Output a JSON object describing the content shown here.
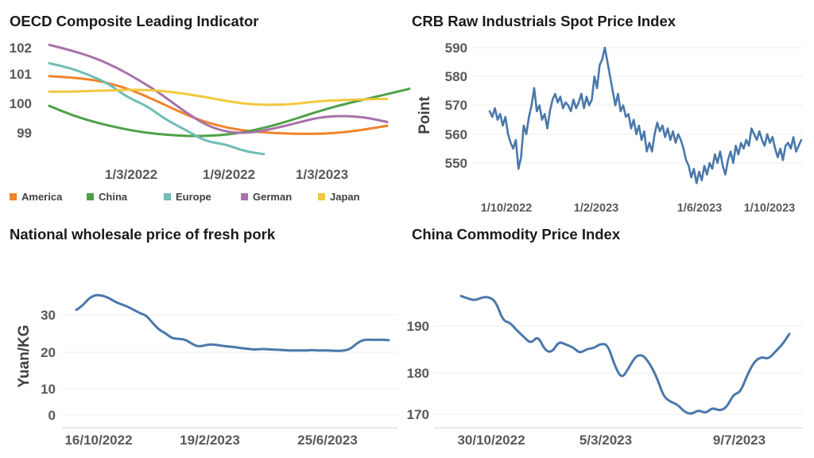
{
  "chart_data": [
    {
      "id": "oecd",
      "type": "line",
      "title": "OECD Composite Leading Indicator",
      "x_ticks": [
        "1/3/2022",
        "1/9/2022",
        "1/3/2023"
      ],
      "y_ticks": [
        "99",
        "100",
        "101",
        "102"
      ],
      "ylim": [
        98,
        102.2
      ],
      "legend_position": "bottom",
      "series": [
        {
          "name": "America",
          "color": "#F0832A",
          "values": [
            101.0,
            100.95,
            100.88,
            100.72,
            100.48,
            100.15,
            99.8,
            99.48,
            99.25,
            99.1,
            99.02,
            98.98,
            98.96,
            98.97,
            99.02,
            99.12,
            99.25
          ]
        },
        {
          "name": "China",
          "color": "#4EA046",
          "values": [
            99.95,
            99.6,
            99.35,
            99.15,
            99.0,
            98.92,
            98.88,
            98.9,
            99.0,
            99.18,
            99.42,
            99.7,
            99.95,
            100.15,
            100.35,
            100.55
          ]
        },
        {
          "name": "Europe",
          "color": "#6FBDB5",
          "values": [
            101.45,
            101.3,
            101.05,
            100.75,
            100.25,
            99.95,
            99.45,
            99.1,
            98.7,
            98.6,
            98.35,
            98.25
          ]
        },
        {
          "name": "German",
          "color": "#A772A8",
          "values": [
            102.1,
            101.9,
            101.65,
            101.3,
            100.85,
            100.35,
            99.75,
            99.25,
            99.0,
            99.0,
            99.15,
            99.35,
            99.55,
            99.6,
            99.55,
            99.38
          ]
        },
        {
          "name": "Japan",
          "color": "#F2C840",
          "values": [
            100.45,
            100.45,
            100.48,
            100.5,
            100.52,
            100.48,
            100.38,
            100.25,
            100.1,
            100.0,
            99.98,
            100.02,
            100.12,
            100.15,
            100.18,
            100.2
          ]
        }
      ]
    },
    {
      "id": "crb",
      "type": "line",
      "title": "CRB Raw Industrials Spot Price Index",
      "ylabel": "Point",
      "x_ticks": [
        "1/10/2022",
        "1/2/2023",
        "1/6/2023",
        "1/10/2023"
      ],
      "y_ticks": [
        "550",
        "560",
        "570",
        "580",
        "590"
      ],
      "ylim": [
        542,
        592
      ],
      "series": [
        {
          "name": "",
          "color": "#4A78AA",
          "values": [
            568,
            566,
            569,
            565,
            567,
            563,
            566,
            560,
            557,
            555,
            558,
            548,
            552,
            563,
            560,
            566,
            570,
            576,
            568,
            570,
            565,
            567,
            562,
            568,
            572,
            574,
            571,
            573,
            569,
            571,
            570,
            568,
            572,
            569,
            571,
            574,
            569,
            573,
            570,
            572,
            580,
            576,
            584,
            586,
            590,
            585,
            580,
            575,
            570,
            574,
            568,
            570,
            566,
            567,
            562,
            565,
            560,
            563,
            558,
            561,
            554,
            557,
            554,
            560,
            564,
            561,
            563,
            559,
            562,
            558,
            561,
            557,
            560,
            558,
            555,
            551,
            549,
            545,
            548,
            543,
            547,
            544,
            549,
            546,
            550,
            548,
            553,
            550,
            554,
            549,
            546,
            551,
            554,
            550,
            556,
            553,
            557,
            555,
            558,
            556,
            562,
            560,
            558,
            561,
            558,
            556,
            560,
            557,
            559,
            555,
            552,
            555,
            551,
            556,
            557,
            555,
            559,
            554,
            556,
            558
          ]
        }
      ]
    },
    {
      "id": "pork",
      "type": "line",
      "title": "National wholesale price of fresh pork",
      "ylabel": "Yuan/KG",
      "x_ticks": [
        "16/10/2022",
        "19/2/2023",
        "25/6/2023"
      ],
      "y_ticks": [
        "0",
        "10",
        "20",
        "30"
      ],
      "ylim": [
        -2,
        38
      ],
      "series": [
        {
          "name": "",
          "color": "#4A78AA",
          "values": [
            31.5,
            32.8,
            35.0,
            36.0,
            35.8,
            35.2,
            34.0,
            33.2,
            32.5,
            31.5,
            30.5,
            29.8,
            27.5,
            25.5,
            24.5,
            23.0,
            22.8,
            22.7,
            21.5,
            20.5,
            20.8,
            21.2,
            21.0,
            20.7,
            20.5,
            20.3,
            20.0,
            19.8,
            19.6,
            19.8,
            19.7,
            19.6,
            19.5,
            19.4,
            19.3,
            19.4,
            19.3,
            19.5,
            19.3,
            19.4,
            19.3,
            19.2,
            19.3,
            19.8,
            21.5,
            22.5,
            22.6,
            22.5,
            22.6,
            22.4
          ]
        }
      ]
    },
    {
      "id": "ccpi",
      "type": "line",
      "title": "China Commodity Price Index",
      "x_ticks": [
        "30/10/2022",
        "5/3/2023",
        "9/7/2023"
      ],
      "y_ticks": [
        "170",
        "180",
        "190"
      ],
      "ylim": [
        166.5,
        199
      ],
      "series": [
        {
          "name": "",
          "color": "#4A78AA",
          "values": [
            196.8,
            196.2,
            195.8,
            196.5,
            196.6,
            195.5,
            191.2,
            190.8,
            189.0,
            187.5,
            186.0,
            187.8,
            184.5,
            184.0,
            186.5,
            185.8,
            185.2,
            183.8,
            184.8,
            185.0,
            186.0,
            185.8,
            181.0,
            178.0,
            180.5,
            183.2,
            183.5,
            181.5,
            178.5,
            174.0,
            172.8,
            172.2,
            170.5,
            170.0,
            171.0,
            170.2,
            171.5,
            170.8,
            171.5,
            174.5,
            175.0,
            179.0,
            182.0,
            183.0,
            182.5,
            184.2,
            185.8,
            188.2
          ]
        }
      ]
    }
  ]
}
